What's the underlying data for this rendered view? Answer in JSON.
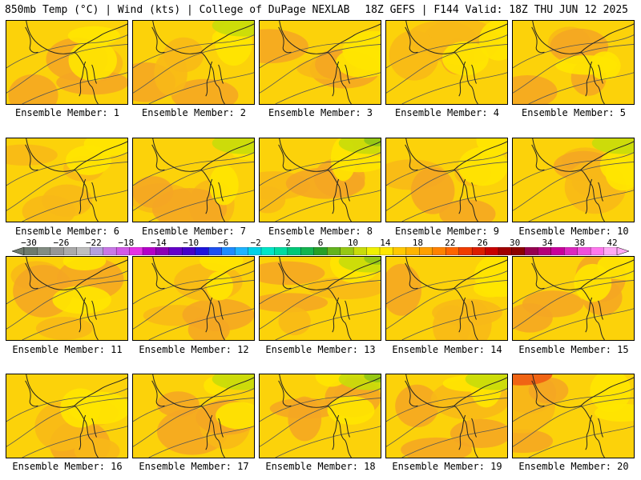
{
  "header": {
    "left": "850mb Temp (°C) | Wind (kts) | College of DuPage NEXLAB",
    "right": "18Z GEFS | F144 Valid: 18Z THU JUN 12 2025"
  },
  "members": [
    {
      "label": "Ensemble Member: 1"
    },
    {
      "label": "Ensemble Member: 2"
    },
    {
      "label": "Ensemble Member: 3"
    },
    {
      "label": "Ensemble Member: 4"
    },
    {
      "label": "Ensemble Member: 5"
    },
    {
      "label": "Ensemble Member: 6"
    },
    {
      "label": "Ensemble Member: 7"
    },
    {
      "label": "Ensemble Member: 8"
    },
    {
      "label": "Ensemble Member: 9"
    },
    {
      "label": "Ensemble Member: 10"
    },
    {
      "label": "Ensemble Member: 11"
    },
    {
      "label": "Ensemble Member: 12"
    },
    {
      "label": "Ensemble Member: 13"
    },
    {
      "label": "Ensemble Member: 14"
    },
    {
      "label": "Ensemble Member: 15"
    },
    {
      "label": "Ensemble Member: 16"
    },
    {
      "label": "Ensemble Member: 17"
    },
    {
      "label": "Ensemble Member: 18"
    },
    {
      "label": "Ensemble Member: 19"
    },
    {
      "label": "Ensemble Member: 20"
    }
  ],
  "colorbar": {
    "tick_labels": [
      "−30",
      "−26",
      "−22",
      "−18",
      "−14",
      "−10",
      "−6",
      "−2",
      "2",
      "6",
      "10",
      "14",
      "18",
      "22",
      "26",
      "30",
      "34",
      "38",
      "42"
    ],
    "colors": [
      "#6e7a6e",
      "#828c82",
      "#969696",
      "#aaaaaa",
      "#bebebe",
      "#b4a0dc",
      "#c878e6",
      "#d25ae6",
      "#e632e6",
      "#b400c8",
      "#8c00b4",
      "#6400c8",
      "#4600c8",
      "#1e14dc",
      "#1e50f0",
      "#1e8cff",
      "#1eb4ff",
      "#00d2e6",
      "#00e6c8",
      "#00dca0",
      "#00c878",
      "#14b450",
      "#28a028",
      "#64b41e",
      "#96c814",
      "#c8dc0a",
      "#f0f000",
      "#ffe600",
      "#ffc800",
      "#ffb400",
      "#ffa000",
      "#ff8200",
      "#ff6400",
      "#f03c00",
      "#dc1e00",
      "#c80000",
      "#a00000",
      "#8c0000",
      "#960050",
      "#b40078",
      "#c8009b",
      "#dc28be",
      "#f050dc",
      "#ff78ee",
      "#ffaaf5"
    ]
  },
  "palette": {
    "orange_warm": "#f5a623",
    "orange": "#f8b818",
    "gold": "#fcd20a",
    "yellow": "#ffe600",
    "yellow_green": "#c8dc0a",
    "green": "#96c814",
    "red_orange": "#f06414"
  }
}
